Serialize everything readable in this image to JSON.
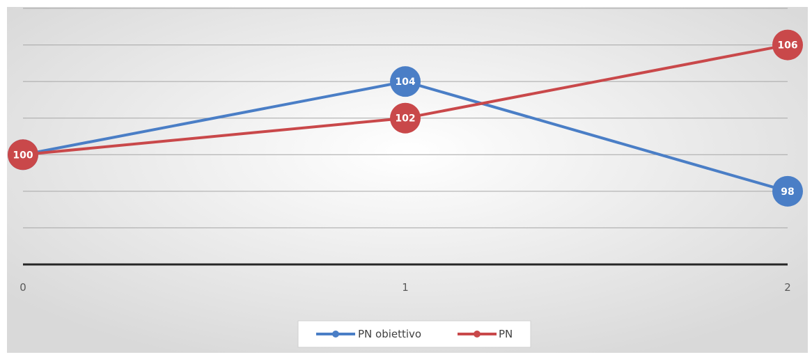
{
  "chart_data": {
    "type": "line",
    "x": [
      0,
      1,
      2
    ],
    "tick_labels": [
      "0",
      "1",
      "2"
    ],
    "series": [
      {
        "name": "PN obiettivo",
        "values": [
          100,
          104,
          98
        ],
        "color": "#4a7ec6",
        "labels": [
          "",
          "104",
          "98"
        ]
      },
      {
        "name": "PN",
        "values": [
          100,
          102,
          106
        ],
        "color": "#c9484a",
        "labels": [
          "100",
          "102",
          "106"
        ]
      }
    ],
    "ylim": [
      94,
      108
    ],
    "grid": true,
    "legend_position": "bottom",
    "colors": {
      "background_center": "#ffffff",
      "background_edge": "#d9d9d9",
      "gridline": "#a6a6a6",
      "axis": "#262626"
    }
  }
}
